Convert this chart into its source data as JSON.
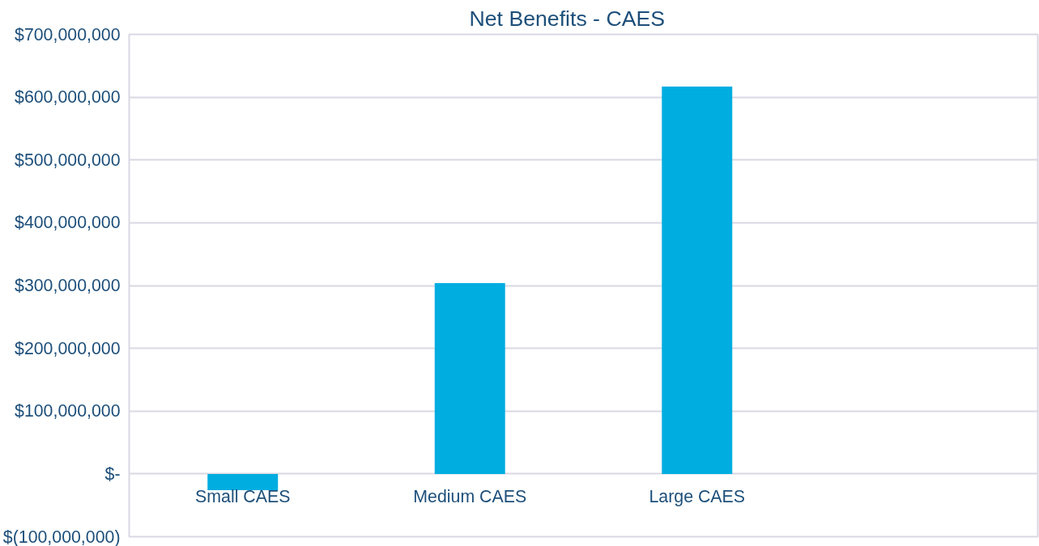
{
  "chart_data": {
    "type": "bar",
    "title": "Net Benefits - CAES",
    "categories": [
      "Small CAES",
      "Medium CAES",
      "Large CAES",
      null
    ],
    "values": [
      -26000000,
      304000000,
      617000000,
      null
    ],
    "color": "#00ade0",
    "ylim": [
      -100000000,
      700000000
    ],
    "yticks": [
      {
        "value": -100000000,
        "label": "$(100,000,000)"
      },
      {
        "value": 0,
        "label": "$-"
      },
      {
        "value": 100000000,
        "label": "$100,000,000"
      },
      {
        "value": 200000000,
        "label": "$200,000,000"
      },
      {
        "value": 300000000,
        "label": "$300,000,000"
      },
      {
        "value": 400000000,
        "label": "$400,000,000"
      },
      {
        "value": 500000000,
        "label": "$500,000,000"
      },
      {
        "value": 600000000,
        "label": "$600,000,000"
      },
      {
        "value": 700000000,
        "label": "$700,000,000"
      }
    ],
    "grid": "y"
  }
}
